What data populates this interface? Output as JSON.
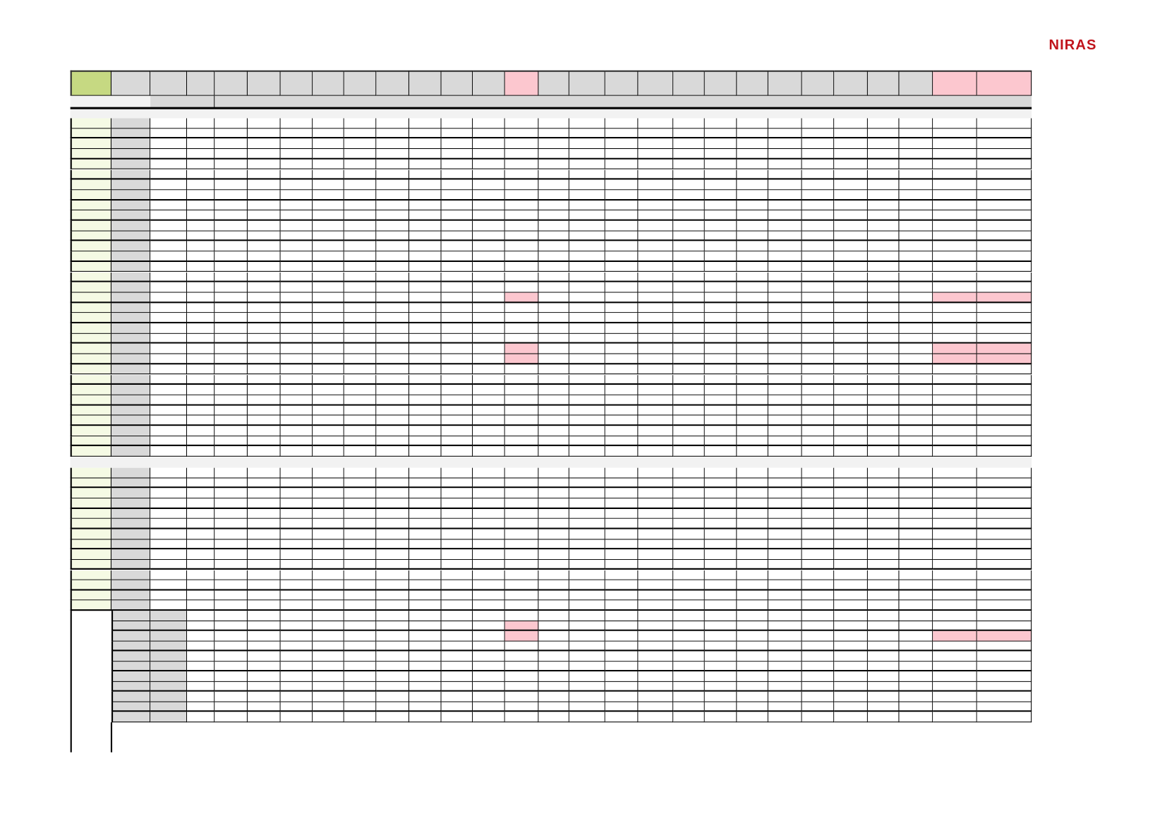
{
  "logo": {
    "text": "NIRAS",
    "color": "#c0141c"
  },
  "colors": {
    "header_gray": "#d9d9d9",
    "header_green": "#c6d982",
    "row_label_green": "#f5fae4",
    "band_gray": "#f2f2f2",
    "highlight_pink": "#fcc7cf"
  },
  "highlights": {
    "block1": [
      {
        "row": 17,
        "cols": [
          12,
          25,
          26
        ]
      },
      {
        "row": 22,
        "cols": [
          12,
          25,
          26
        ]
      },
      {
        "row": 23,
        "cols": [
          12,
          25,
          26
        ]
      }
    ],
    "block3": [
      {
        "row": 1,
        "cols": [
          12
        ]
      },
      {
        "row": 2,
        "cols": [
          12,
          25,
          26
        ]
      }
    ]
  }
}
